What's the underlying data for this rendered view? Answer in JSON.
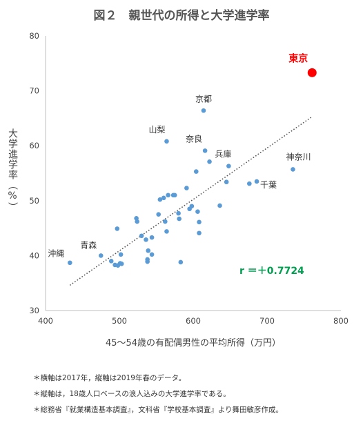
{
  "title": "図２　親世代の所得と大学進学率",
  "chart_data": {
    "type": "scatter",
    "xlabel": "45～54歳の有配偶男性の平均所得（万円）",
    "ylabel": "大学進学率（%）",
    "xlim": [
      400,
      800
    ],
    "ylim": [
      30,
      80
    ],
    "xticks": [
      400,
      500,
      600,
      700,
      800
    ],
    "yticks": [
      30,
      40,
      50,
      60,
      70,
      80
    ],
    "grid": false,
    "trendline": {
      "style": "dotted",
      "x": [
        433,
        760
      ],
      "y": [
        34.6,
        65.2
      ]
    },
    "correlation_label": "r ＝＋0.7724",
    "points": [
      {
        "x": 761,
        "y": 73.3,
        "label": "東京",
        "highlight": true
      },
      {
        "x": 614,
        "y": 66.4,
        "label": "京都"
      },
      {
        "x": 564,
        "y": 60.8,
        "label": "山梨"
      },
      {
        "x": 616,
        "y": 59.1,
        "label": "奈良"
      },
      {
        "x": 648,
        "y": 56.3,
        "label": "兵庫"
      },
      {
        "x": 735,
        "y": 55.7,
        "label": "神奈川"
      },
      {
        "x": 686,
        "y": 53.5,
        "label": "千葉"
      },
      {
        "x": 475,
        "y": 40.0,
        "label": "青森"
      },
      {
        "x": 433,
        "y": 38.7,
        "label": "沖縄"
      },
      {
        "x": 622,
        "y": 57.1
      },
      {
        "x": 604,
        "y": 55.3
      },
      {
        "x": 645,
        "y": 53.4
      },
      {
        "x": 676,
        "y": 53.1
      },
      {
        "x": 591,
        "y": 52.3
      },
      {
        "x": 566,
        "y": 51.0
      },
      {
        "x": 573,
        "y": 51.0
      },
      {
        "x": 575,
        "y": 51.0
      },
      {
        "x": 555,
        "y": 50.2
      },
      {
        "x": 560,
        "y": 50.5
      },
      {
        "x": 636,
        "y": 49.1
      },
      {
        "x": 598,
        "y": 49.0
      },
      {
        "x": 595,
        "y": 48.5
      },
      {
        "x": 606,
        "y": 48.0
      },
      {
        "x": 553,
        "y": 47.5
      },
      {
        "x": 580,
        "y": 47.7
      },
      {
        "x": 523,
        "y": 46.8
      },
      {
        "x": 524,
        "y": 46.2
      },
      {
        "x": 581,
        "y": 46.7
      },
      {
        "x": 562,
        "y": 46.2
      },
      {
        "x": 608,
        "y": 46.1
      },
      {
        "x": 497,
        "y": 44.9
      },
      {
        "x": 564,
        "y": 44.4
      },
      {
        "x": 608,
        "y": 44.1
      },
      {
        "x": 530,
        "y": 43.6
      },
      {
        "x": 544,
        "y": 43.3
      },
      {
        "x": 536,
        "y": 42.9
      },
      {
        "x": 539,
        "y": 40.9
      },
      {
        "x": 544,
        "y": 40.2
      },
      {
        "x": 502,
        "y": 40.2
      },
      {
        "x": 489,
        "y": 39.0
      },
      {
        "x": 538,
        "y": 39.3
      },
      {
        "x": 538,
        "y": 38.9
      },
      {
        "x": 501,
        "y": 38.6
      },
      {
        "x": 583,
        "y": 38.8
      },
      {
        "x": 503,
        "y": 38.5
      },
      {
        "x": 494,
        "y": 38.3
      },
      {
        "x": 498,
        "y": 38.2
      }
    ]
  },
  "notes": [
    "＊横軸は2017年，縦軸は2019年春のデータ。",
    "＊縦軸は，18歳人口ベースの浪人込みの大学進学率である。",
    "＊総務省『就業構造基本調査』，文科省『学校基本調査』より舞田敏彦作成。"
  ],
  "colors": {
    "point": "#5b9bd5",
    "highlight_point": "#ff0000",
    "highlight_label": "#ff0000",
    "correlation_label": "#00a050",
    "trendline": "#595959",
    "axis": "#bfbfbf"
  }
}
